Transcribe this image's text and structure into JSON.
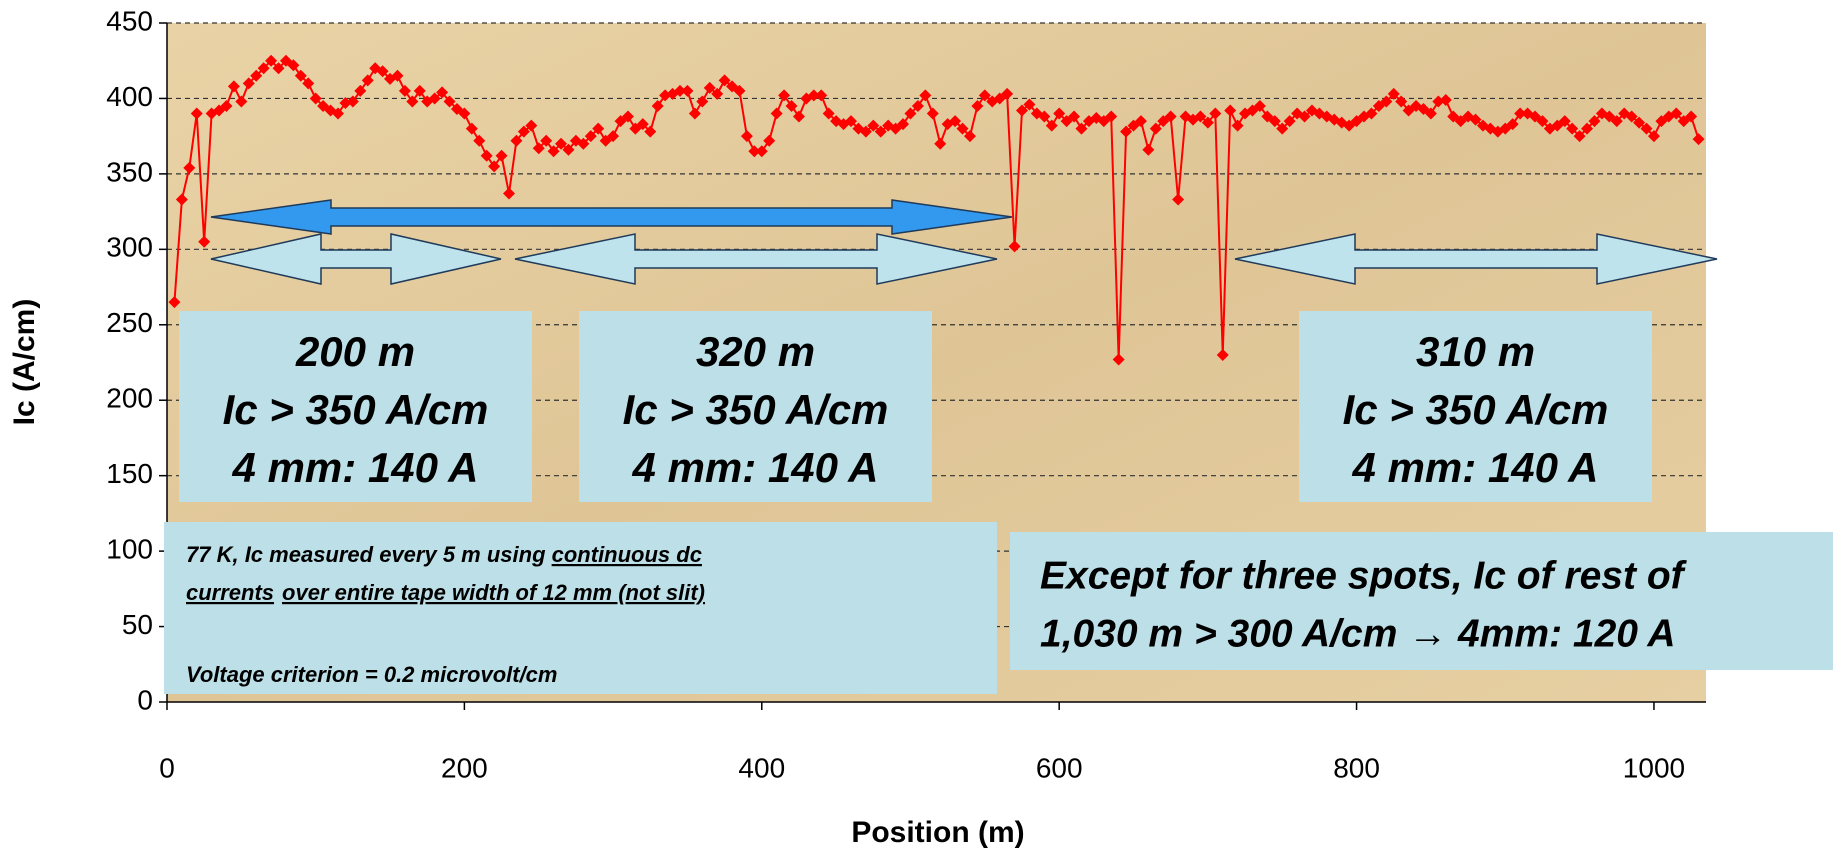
{
  "chart_data": {
    "type": "line",
    "x_label": "Position (m)",
    "y_label": "Ic (A/cm)",
    "xlim": [
      0,
      1035
    ],
    "ylim": [
      0,
      450
    ],
    "xticks": [
      0,
      200,
      400,
      600,
      800,
      1000
    ],
    "yticks": [
      0,
      50,
      100,
      150,
      200,
      250,
      300,
      350,
      400,
      450
    ],
    "grid": true,
    "series": [
      {
        "color": "#ff0000",
        "x": [
          5,
          10,
          15,
          20,
          25,
          30,
          35,
          40,
          45,
          50,
          55,
          60,
          65,
          70,
          75,
          80,
          85,
          90,
          95,
          100,
          105,
          110,
          115,
          120,
          125,
          130,
          135,
          140,
          145,
          150,
          155,
          160,
          165,
          170,
          175,
          180,
          185,
          190,
          195,
          200,
          205,
          210,
          215,
          220,
          225,
          230,
          235,
          240,
          245,
          250,
          255,
          260,
          265,
          270,
          275,
          280,
          285,
          290,
          295,
          300,
          305,
          310,
          315,
          320,
          325,
          330,
          335,
          340,
          345,
          350,
          355,
          360,
          365,
          370,
          375,
          380,
          385,
          390,
          395,
          400,
          405,
          410,
          415,
          420,
          425,
          430,
          435,
          440,
          445,
          450,
          455,
          460,
          465,
          470,
          475,
          480,
          485,
          490,
          495,
          500,
          505,
          510,
          515,
          520,
          525,
          530,
          535,
          540,
          545,
          550,
          555,
          560,
          565,
          570,
          575,
          580,
          585,
          590,
          595,
          600,
          605,
          610,
          615,
          620,
          625,
          630,
          635,
          640,
          645,
          650,
          655,
          660,
          665,
          670,
          675,
          680,
          685,
          690,
          695,
          700,
          705,
          710,
          715,
          720,
          725,
          730,
          735,
          740,
          745,
          750,
          755,
          760,
          765,
          770,
          775,
          780,
          785,
          790,
          795,
          800,
          805,
          810,
          815,
          820,
          825,
          830,
          835,
          840,
          845,
          850,
          855,
          860,
          865,
          870,
          875,
          880,
          885,
          890,
          895,
          900,
          905,
          910,
          915,
          920,
          925,
          930,
          935,
          940,
          945,
          950,
          955,
          960,
          965,
          970,
          975,
          980,
          985,
          990,
          995,
          1000,
          1005,
          1010,
          1015,
          1020,
          1025,
          1030
        ],
        "values": [
          265,
          333,
          354,
          390,
          305,
          390,
          392,
          395,
          408,
          398,
          410,
          415,
          420,
          425,
          420,
          425,
          422,
          415,
          410,
          400,
          395,
          392,
          390,
          397,
          398,
          405,
          412,
          420,
          418,
          413,
          415,
          405,
          398,
          405,
          398,
          400,
          404,
          398,
          393,
          390,
          380,
          372,
          362,
          355,
          362,
          337,
          372,
          378,
          382,
          367,
          372,
          365,
          370,
          366,
          372,
          370,
          375,
          380,
          372,
          375,
          385,
          388,
          380,
          383,
          378,
          395,
          402,
          403,
          405,
          405,
          390,
          398,
          407,
          403,
          412,
          408,
          405,
          375,
          365,
          365,
          372,
          390,
          402,
          395,
          388,
          400,
          402,
          402,
          390,
          385,
          383,
          385,
          380,
          378,
          382,
          378,
          382,
          380,
          383,
          390,
          395,
          402,
          390,
          370,
          383,
          385,
          380,
          375,
          395,
          402,
          398,
          400,
          403,
          302,
          392,
          396,
          390,
          388,
          382,
          390,
          385,
          388,
          380,
          385,
          387,
          385,
          388,
          227,
          378,
          382,
          385,
          366,
          380,
          385,
          388,
          333,
          388,
          386,
          388,
          384,
          390,
          230,
          392,
          382,
          390,
          392,
          395,
          388,
          385,
          380,
          385,
          390,
          388,
          392,
          390,
          388,
          386,
          384,
          382,
          385,
          388,
          390,
          395,
          398,
          403,
          398,
          392,
          395,
          393,
          390,
          398,
          399,
          388,
          385,
          388,
          386,
          382,
          380,
          378,
          380,
          383,
          390,
          390,
          388,
          385,
          380,
          382,
          385,
          380,
          375,
          380,
          385,
          390,
          388,
          385,
          390,
          388,
          384,
          380,
          375,
          385,
          388,
          390,
          385,
          388,
          373
        ]
      }
    ],
    "annotations": [
      {
        "lines": [
          "200 m",
          "Ic > 350 A/cm",
          "4 mm: 140 A"
        ]
      },
      {
        "lines": [
          "320 m",
          "Ic > 350 A/cm",
          "4 mm: 140 A"
        ]
      },
      {
        "lines": [
          "310 m",
          "Ic > 350 A/cm",
          "4 mm: 140 A"
        ]
      }
    ],
    "note": {
      "line1": [
        "77 K, Ic measured every 5 m using ",
        "continuous dc"
      ],
      "line2": [
        "currents",
        "over entire tape width of 12 mm (not slit)"
      ],
      "line3": "Voltage criterion  = 0.2 microvolt/cm"
    },
    "summary": [
      "Except for three spots, Ic of rest of",
      "1,030 m > 300 A/cm → 4mm: 120 A"
    ]
  }
}
